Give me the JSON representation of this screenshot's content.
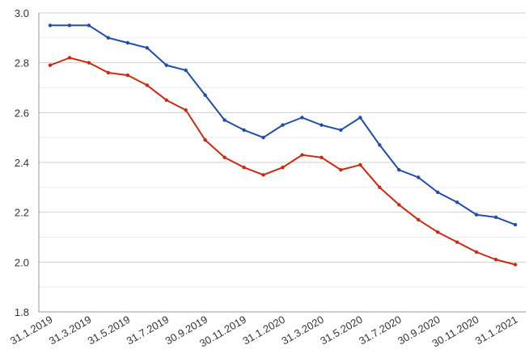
{
  "chart_data": {
    "type": "line",
    "title": "",
    "xlabel": "",
    "ylabel": "",
    "ylim": [
      1.8,
      3.0
    ],
    "yticks": [
      "1.8",
      "2.0",
      "2.2",
      "2.4",
      "2.6",
      "2.8",
      "3.0"
    ],
    "grid": true,
    "legend": "none",
    "x_tick_labels": [
      "31.1.2019",
      "31.3.2019",
      "31.5.2019",
      "31.7.2019",
      "30.9.2019",
      "30.11.2019",
      "31.1.2020",
      "31.3.2020",
      "31.5.2020",
      "31.7.2020",
      "30.9.2020",
      "30.11.2020",
      "31.1.2021"
    ],
    "x": [
      "2019-01",
      "2019-02",
      "2019-03",
      "2019-04",
      "2019-05",
      "2019-06",
      "2019-07",
      "2019-08",
      "2019-09",
      "2019-10",
      "2019-11",
      "2019-12",
      "2020-01",
      "2020-02",
      "2020-03",
      "2020-04",
      "2020-05",
      "2020-06",
      "2020-07",
      "2020-08",
      "2020-09",
      "2020-10",
      "2020-11",
      "2020-12",
      "2021-01"
    ],
    "series": [
      {
        "color": "#1f4ea8",
        "values": [
          2.95,
          2.95,
          2.95,
          2.9,
          2.88,
          2.86,
          2.79,
          2.77,
          2.67,
          2.57,
          2.53,
          2.5,
          2.55,
          2.58,
          2.55,
          2.53,
          2.58,
          2.47,
          2.37,
          2.34,
          2.28,
          2.24,
          2.19,
          2.18,
          2.15
        ]
      },
      {
        "color": "#cc2a10",
        "values": [
          2.79,
          2.82,
          2.8,
          2.76,
          2.75,
          2.71,
          2.65,
          2.61,
          2.49,
          2.42,
          2.38,
          2.35,
          2.38,
          2.43,
          2.42,
          2.37,
          2.39,
          2.3,
          2.23,
          2.17,
          2.12,
          2.08,
          2.04,
          2.01,
          1.99
        ]
      }
    ]
  }
}
